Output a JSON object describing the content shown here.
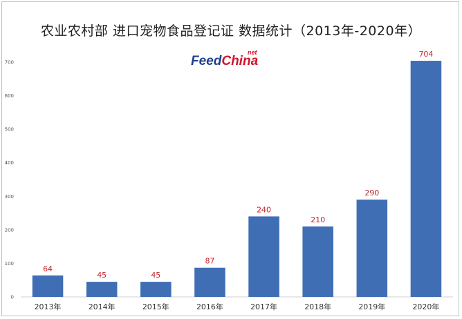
{
  "chart_data": {
    "type": "bar",
    "title": "农业农村部 进口宠物食品登记证 数据统计（2013年-2020年）",
    "categories": [
      "2013年",
      "2014年",
      "2015年",
      "2016年",
      "2017年",
      "2018年",
      "2019年",
      "2020年"
    ],
    "values": [
      64,
      45,
      45,
      87,
      240,
      210,
      290,
      704
    ],
    "ylim": [
      0,
      700
    ],
    "yticks": [
      0,
      100,
      200,
      300,
      400,
      500,
      600,
      700
    ],
    "xlabel": "",
    "ylabel": "",
    "grid": false,
    "bar_color": "#3f6eb5",
    "label_color": "#c0262c"
  },
  "logo": {
    "text_main": "Feed",
    "text_accent": "China",
    "text_suffix": "net"
  }
}
